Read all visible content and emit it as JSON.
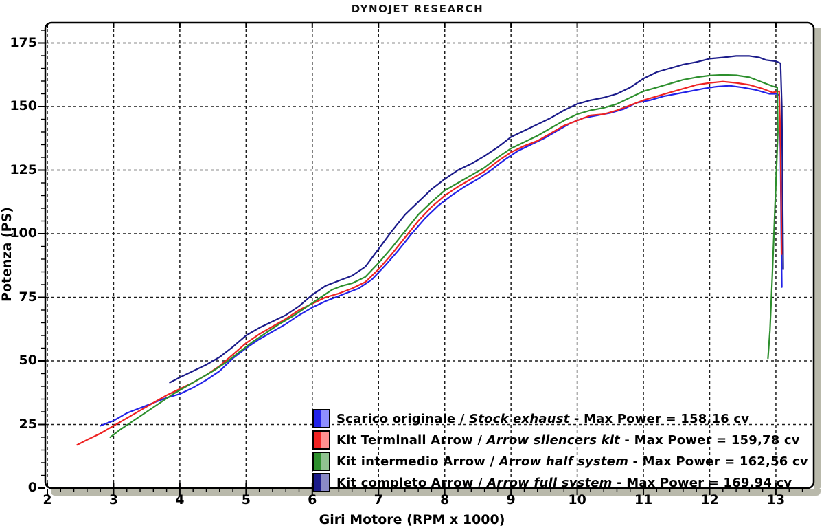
{
  "chart_data": {
    "type": "line",
    "title": "DYNOJET RESEARCH",
    "xlabel": "Giri Motore (RPM x 1000)",
    "ylabel": "Potenza (PS)",
    "xlim": [
      2,
      13.6
    ],
    "ylim": [
      0,
      183
    ],
    "x_major_ticks": [
      2,
      3,
      4,
      5,
      6,
      7,
      8,
      9,
      10,
      11,
      12,
      13
    ],
    "x_minor_step": 0.2,
    "y_major_ticks": [
      0,
      25,
      50,
      75,
      100,
      125,
      150,
      175
    ],
    "y_minor_step": 5,
    "grid": "dashed-black-on-majors",
    "legend_position": "inside-bottom-right",
    "x_unit": "RPM x 1000",
    "y_unit": "PS",
    "series": [
      {
        "name": "Scarico originale",
        "sep": " / ",
        "name_en": "Stock exhaust",
        "suffix": " - Max Power = 158,16 cv",
        "max_power_cv": 158.16,
        "color": "#2222e8",
        "color_light": "#8f8fff",
        "points": [
          [
            2.8,
            24.5
          ],
          [
            2.9,
            25.5
          ],
          [
            3.0,
            26.5
          ],
          [
            3.1,
            28
          ],
          [
            3.2,
            29.5
          ],
          [
            3.4,
            31.5
          ],
          [
            3.6,
            33.5
          ],
          [
            3.8,
            35.5
          ],
          [
            4.0,
            37
          ],
          [
            4.2,
            39.5
          ],
          [
            4.4,
            42.5
          ],
          [
            4.6,
            46
          ],
          [
            4.8,
            51
          ],
          [
            5.0,
            55
          ],
          [
            5.2,
            58.5
          ],
          [
            5.4,
            61.5
          ],
          [
            5.6,
            64.5
          ],
          [
            5.8,
            68
          ],
          [
            6.0,
            71
          ],
          [
            6.2,
            73.5
          ],
          [
            6.35,
            75
          ],
          [
            6.5,
            76.5
          ],
          [
            6.7,
            78.5
          ],
          [
            6.9,
            82
          ],
          [
            7.1,
            87.5
          ],
          [
            7.3,
            93.5
          ],
          [
            7.5,
            100
          ],
          [
            7.7,
            106
          ],
          [
            7.9,
            111
          ],
          [
            8.1,
            115
          ],
          [
            8.3,
            118.5
          ],
          [
            8.5,
            121.5
          ],
          [
            8.7,
            125
          ],
          [
            8.9,
            129
          ],
          [
            9.1,
            132.5
          ],
          [
            9.3,
            135
          ],
          [
            9.5,
            137.5
          ],
          [
            9.7,
            140.5
          ],
          [
            9.9,
            143.5
          ],
          [
            10.1,
            145.5
          ],
          [
            10.3,
            146.5
          ],
          [
            10.5,
            147.5
          ],
          [
            10.7,
            149
          ],
          [
            10.9,
            151.5
          ],
          [
            11.1,
            152.5
          ],
          [
            11.3,
            154
          ],
          [
            11.5,
            155
          ],
          [
            11.7,
            156
          ],
          [
            11.9,
            157
          ],
          [
            12.1,
            157.8
          ],
          [
            12.3,
            158.2
          ],
          [
            12.5,
            157.5
          ],
          [
            12.7,
            156.5
          ],
          [
            12.9,
            155
          ],
          [
            13.0,
            155
          ],
          [
            13.05,
            154.5
          ],
          [
            13.07,
            130
          ],
          [
            13.08,
            100
          ],
          [
            13.09,
            79
          ]
        ]
      },
      {
        "name": "Kit Terminali Arrow",
        "sep": " / ",
        "name_en": "Arrow silencers kit",
        "suffix": " - Max Power = 159,78 cv",
        "max_power_cv": 159.78,
        "color": "#ee2222",
        "color_light": "#ff9090",
        "points": [
          [
            2.45,
            17
          ],
          [
            2.6,
            19
          ],
          [
            2.8,
            21.5
          ],
          [
            3.0,
            24.5
          ],
          [
            3.2,
            27.5
          ],
          [
            3.4,
            30.5
          ],
          [
            3.6,
            33.5
          ],
          [
            3.8,
            36.5
          ],
          [
            4.0,
            39
          ],
          [
            4.2,
            41.5
          ],
          [
            4.4,
            44.5
          ],
          [
            4.6,
            48
          ],
          [
            4.8,
            52.5
          ],
          [
            5.0,
            57
          ],
          [
            5.2,
            60.5
          ],
          [
            5.4,
            63.5
          ],
          [
            5.6,
            66.5
          ],
          [
            5.8,
            70
          ],
          [
            6.0,
            72.5
          ],
          [
            6.2,
            75
          ],
          [
            6.4,
            76.5
          ],
          [
            6.6,
            78.5
          ],
          [
            6.8,
            81
          ],
          [
            7.0,
            86
          ],
          [
            7.2,
            92
          ],
          [
            7.4,
            98.5
          ],
          [
            7.6,
            105
          ],
          [
            7.8,
            110.5
          ],
          [
            8.0,
            115
          ],
          [
            8.2,
            118.5
          ],
          [
            8.4,
            121.5
          ],
          [
            8.6,
            124.5
          ],
          [
            8.8,
            128.5
          ],
          [
            9.0,
            132
          ],
          [
            9.2,
            134.5
          ],
          [
            9.4,
            136.5
          ],
          [
            9.6,
            139.5
          ],
          [
            9.8,
            142.5
          ],
          [
            10.0,
            144.5
          ],
          [
            10.2,
            146.5
          ],
          [
            10.4,
            147
          ],
          [
            10.6,
            148.5
          ],
          [
            10.8,
            150.5
          ],
          [
            11.0,
            152.5
          ],
          [
            11.2,
            154
          ],
          [
            11.4,
            155.5
          ],
          [
            11.6,
            157
          ],
          [
            11.8,
            158.5
          ],
          [
            12.0,
            159.3
          ],
          [
            12.2,
            159.8
          ],
          [
            12.4,
            159.3
          ],
          [
            12.6,
            158.5
          ],
          [
            12.8,
            157
          ],
          [
            12.95,
            155.5
          ],
          [
            13.05,
            156
          ],
          [
            13.07,
            135
          ],
          [
            13.08,
            110
          ],
          [
            13.09,
            92
          ]
        ]
      },
      {
        "name": "Kit intermedio Arrow",
        "sep": " / ",
        "name_en": "Arrow half system",
        "suffix": " - Max Power = 162,56 cv",
        "max_power_cv": 162.56,
        "color": "#2d8f2d",
        "color_light": "#90c290",
        "points": [
          [
            2.95,
            20
          ],
          [
            3.1,
            23
          ],
          [
            3.3,
            26.5
          ],
          [
            3.5,
            30
          ],
          [
            3.7,
            33.5
          ],
          [
            3.9,
            37
          ],
          [
            4.1,
            40
          ],
          [
            4.3,
            43
          ],
          [
            4.5,
            46
          ],
          [
            4.7,
            49.5
          ],
          [
            4.9,
            53.5
          ],
          [
            5.1,
            57.5
          ],
          [
            5.3,
            61
          ],
          [
            5.5,
            64.5
          ],
          [
            5.7,
            67.5
          ],
          [
            5.9,
            71
          ],
          [
            6.1,
            74.5
          ],
          [
            6.3,
            78
          ],
          [
            6.45,
            79.5
          ],
          [
            6.6,
            80.5
          ],
          [
            6.8,
            83
          ],
          [
            7.0,
            88.5
          ],
          [
            7.2,
            94.5
          ],
          [
            7.4,
            101
          ],
          [
            7.6,
            107.5
          ],
          [
            7.8,
            112.5
          ],
          [
            8.0,
            117
          ],
          [
            8.2,
            120
          ],
          [
            8.4,
            123
          ],
          [
            8.6,
            126
          ],
          [
            8.8,
            130
          ],
          [
            9.0,
            133.5
          ],
          [
            9.2,
            136
          ],
          [
            9.4,
            138.5
          ],
          [
            9.6,
            141.5
          ],
          [
            9.8,
            144.5
          ],
          [
            10.0,
            147
          ],
          [
            10.2,
            148.5
          ],
          [
            10.4,
            149.5
          ],
          [
            10.6,
            151
          ],
          [
            10.8,
            153.5
          ],
          [
            11.0,
            156
          ],
          [
            11.2,
            157.5
          ],
          [
            11.4,
            159
          ],
          [
            11.6,
            160.5
          ],
          [
            11.8,
            161.5
          ],
          [
            12.0,
            162.2
          ],
          [
            12.2,
            162.5
          ],
          [
            12.4,
            162.3
          ],
          [
            12.6,
            161.5
          ],
          [
            12.8,
            159.5
          ],
          [
            12.95,
            158
          ],
          [
            13.02,
            157.5
          ],
          [
            13.03,
            140
          ],
          [
            13.0,
            120
          ],
          [
            12.97,
            100
          ],
          [
            12.94,
            80
          ],
          [
            12.91,
            62
          ],
          [
            12.88,
            51
          ]
        ]
      },
      {
        "name": "Kit completo Arrow",
        "sep": " / ",
        "name_en": "Arrow full system",
        "suffix": " - Max Power = 169,94 cv",
        "max_power_cv": 169.94,
        "color": "#1b1b8a",
        "color_light": "#8a8ac6",
        "points": [
          [
            3.85,
            41.5
          ],
          [
            4.0,
            43.5
          ],
          [
            4.2,
            46
          ],
          [
            4.4,
            48.5
          ],
          [
            4.6,
            51.5
          ],
          [
            4.8,
            55.5
          ],
          [
            5.0,
            60
          ],
          [
            5.2,
            63
          ],
          [
            5.4,
            65.5
          ],
          [
            5.6,
            68
          ],
          [
            5.8,
            71.5
          ],
          [
            6.0,
            76
          ],
          [
            6.2,
            79.5
          ],
          [
            6.4,
            81.5
          ],
          [
            6.6,
            83.5
          ],
          [
            6.8,
            87
          ],
          [
            7.0,
            94
          ],
          [
            7.2,
            101
          ],
          [
            7.4,
            107.5
          ],
          [
            7.6,
            112.5
          ],
          [
            7.8,
            117.5
          ],
          [
            8.0,
            121.5
          ],
          [
            8.2,
            125
          ],
          [
            8.4,
            127.5
          ],
          [
            8.6,
            130.5
          ],
          [
            8.8,
            134
          ],
          [
            9.0,
            138
          ],
          [
            9.2,
            140.5
          ],
          [
            9.4,
            143
          ],
          [
            9.6,
            145.5
          ],
          [
            9.8,
            148.5
          ],
          [
            10.0,
            151
          ],
          [
            10.2,
            152.5
          ],
          [
            10.4,
            153.5
          ],
          [
            10.6,
            155
          ],
          [
            10.8,
            157.5
          ],
          [
            11.0,
            161
          ],
          [
            11.2,
            163.5
          ],
          [
            11.4,
            165
          ],
          [
            11.6,
            166.5
          ],
          [
            11.8,
            167.5
          ],
          [
            12.0,
            168.8
          ],
          [
            12.2,
            169.3
          ],
          [
            12.4,
            169.9
          ],
          [
            12.6,
            169.9
          ],
          [
            12.75,
            169.3
          ],
          [
            12.85,
            168.3
          ],
          [
            13.0,
            167.8
          ],
          [
            13.07,
            167
          ],
          [
            13.09,
            150
          ],
          [
            13.1,
            120
          ],
          [
            13.11,
            86
          ]
        ]
      }
    ]
  }
}
